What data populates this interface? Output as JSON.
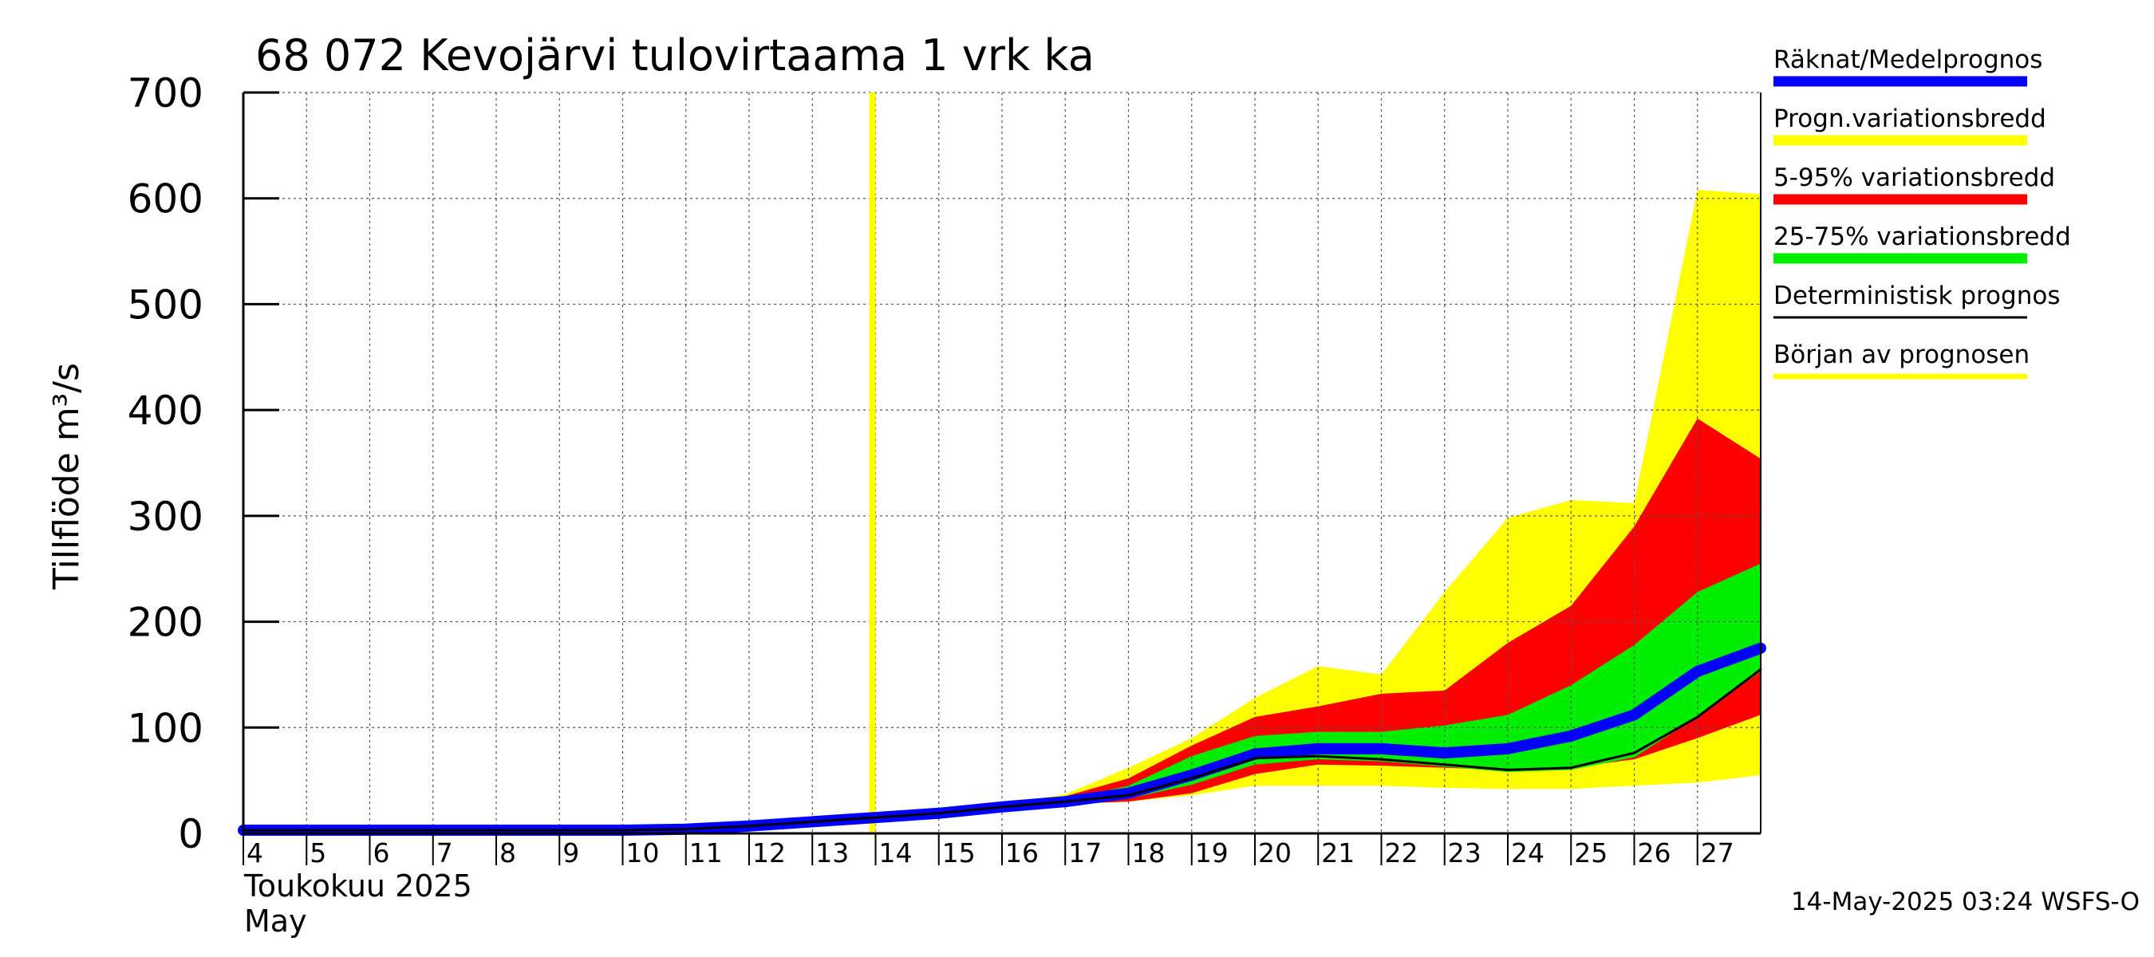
{
  "chart_data": {
    "type": "area",
    "title": "68 072 Kevojärvi tulovirtaama 1 vrk ka",
    "ylabel": "Tillflöde m³/s",
    "ylim": [
      0,
      700
    ],
    "y_ticks": [
      "0",
      "100",
      "200",
      "300",
      "400",
      "500",
      "600",
      "700"
    ],
    "x_ticks": [
      "4",
      "5",
      "6",
      "7",
      "8",
      "9",
      "10",
      "11",
      "12",
      "13",
      "14",
      "15",
      "16",
      "17",
      "18",
      "19",
      "20",
      "21",
      "22",
      "23",
      "24",
      "25",
      "26",
      "27"
    ],
    "xlim": [
      4,
      28
    ],
    "month_labels": [
      "Toukokuu  2025",
      "May"
    ],
    "grid": true,
    "legend_position": "right",
    "forecast_start_day": 13.95,
    "days": [
      4,
      5,
      6,
      7,
      8,
      9,
      10,
      11,
      12,
      13,
      14,
      15,
      16,
      17,
      18,
      19,
      20,
      21,
      22,
      23,
      24,
      25,
      26,
      27,
      28
    ],
    "series": [
      {
        "name": "Progn.variationsbredd",
        "color": "#ffff00",
        "kind": "band",
        "upper": [
          3,
          3,
          3,
          3,
          3,
          3,
          3,
          4,
          7,
          11,
          16,
          20,
          27,
          37,
          62,
          90,
          128,
          158,
          150,
          228,
          298,
          315,
          312,
          608,
          604
        ],
        "lower": [
          3,
          3,
          3,
          3,
          3,
          3,
          3,
          4,
          6,
          10,
          14,
          18,
          23,
          27,
          30,
          36,
          45,
          45,
          45,
          43,
          42,
          42,
          45,
          48,
          55
        ]
      },
      {
        "name": "5-95% variationsbredd",
        "color": "#ff0000",
        "kind": "band",
        "upper": [
          3,
          3,
          3,
          3,
          3,
          3,
          3,
          4,
          7,
          11,
          16,
          20,
          27,
          35,
          52,
          83,
          110,
          120,
          132,
          135,
          180,
          215,
          290,
          392,
          354
        ],
        "lower": [
          3,
          3,
          3,
          3,
          3,
          3,
          3,
          4,
          6,
          10,
          14,
          18,
          23,
          28,
          30,
          38,
          56,
          65,
          64,
          62,
          60,
          62,
          70,
          90,
          112
        ]
      },
      {
        "name": "25-75% variationsbredd",
        "color": "#00ee00",
        "kind": "band",
        "upper": [
          3,
          3,
          3,
          3,
          3,
          3,
          3,
          4,
          7,
          11,
          16,
          20,
          26,
          32,
          45,
          73,
          92,
          96,
          96,
          102,
          112,
          140,
          178,
          228,
          255
        ],
        "lower": [
          3,
          3,
          3,
          3,
          3,
          3,
          3,
          4,
          6,
          10,
          14,
          18,
          23,
          29,
          33,
          46,
          65,
          70,
          68,
          63,
          58,
          60,
          72,
          110,
          153
        ]
      },
      {
        "name": "Räknat/Medelprognos",
        "color": "#0000ff",
        "kind": "line",
        "values": [
          3,
          3,
          3,
          3,
          3,
          3,
          3,
          4,
          7,
          11,
          15,
          19,
          25,
          30,
          38,
          55,
          75,
          80,
          80,
          76,
          80,
          92,
          112,
          153,
          175
        ]
      },
      {
        "name": "Deterministisk prognos",
        "color": "#000000",
        "kind": "line",
        "values": [
          3,
          3,
          3,
          3,
          3,
          3,
          3,
          4,
          7,
          11,
          15,
          19,
          25,
          30,
          36,
          52,
          71,
          73,
          70,
          65,
          60,
          62,
          76,
          110,
          155
        ]
      }
    ],
    "legend": [
      {
        "label": "Räknat/Medelprognos",
        "color": "#0000ff",
        "style": "thick"
      },
      {
        "label": "Progn.variationsbredd",
        "color": "#ffff00",
        "style": "thick"
      },
      {
        "label": "5-95% variationsbredd",
        "color": "#ff0000",
        "style": "thick"
      },
      {
        "label": "25-75% variationsbredd",
        "color": "#00ee00",
        "style": "thick"
      },
      {
        "label": "Deterministisk prognos",
        "color": "#000000",
        "style": "thin"
      },
      {
        "label": "Början av prognosen",
        "color": "#ffff00",
        "style": "medium"
      }
    ],
    "footer": "14-May-2025 03:24 WSFS-O"
  }
}
